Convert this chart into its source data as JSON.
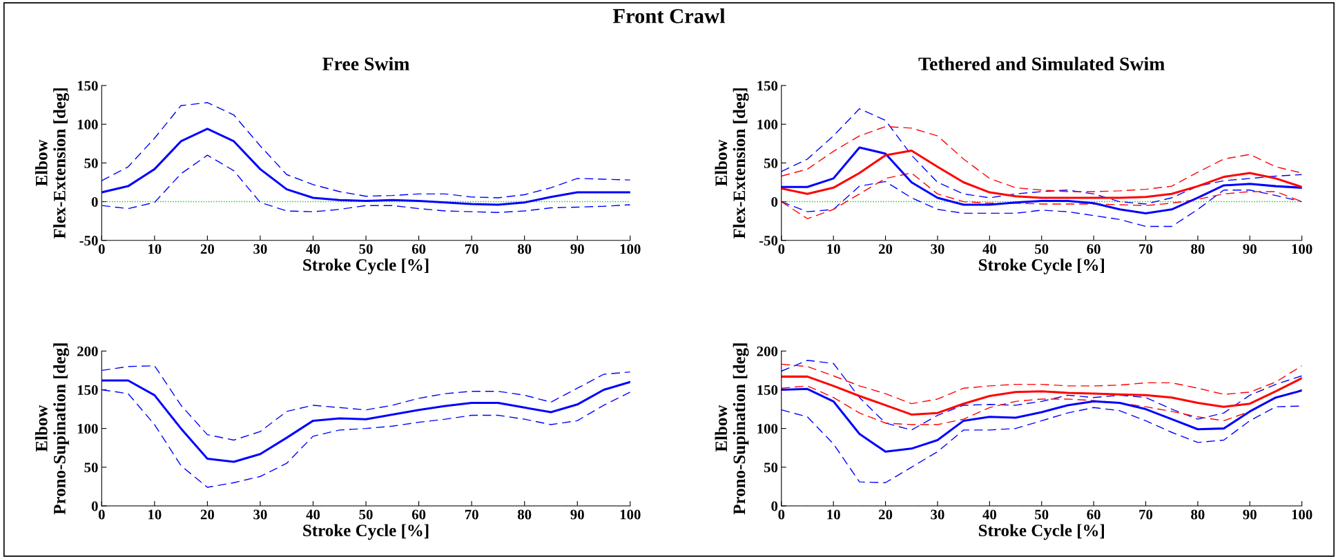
{
  "chart_data": [
    {
      "type": "line",
      "title": "Free Swim",
      "annotations": [
        "Front Crawl"
      ],
      "xlabel": "Stroke Cycle [%]",
      "ylabel": "Elbow\nFlex-Extension [deg]",
      "x": [
        0,
        5,
        10,
        15,
        20,
        25,
        30,
        35,
        40,
        45,
        50,
        55,
        60,
        65,
        70,
        75,
        80,
        85,
        90,
        95,
        100
      ],
      "xlim": [
        0,
        100
      ],
      "xticks": [
        0,
        10,
        20,
        30,
        40,
        50,
        60,
        70,
        80,
        90,
        100
      ],
      "ylim": [
        -50,
        150
      ],
      "yticks": [
        -50,
        0,
        50,
        100,
        150
      ],
      "grid": false,
      "ref_lines": [
        {
          "axis": "y",
          "value": 0,
          "color": "#00cc00",
          "line_style": "dotted"
        }
      ],
      "series": [
        {
          "color": "#0000ff",
          "line_style": "solid",
          "values": [
            12,
            20,
            42,
            78,
            94,
            78,
            42,
            16,
            5,
            2,
            1,
            2,
            1,
            -1,
            -3,
            -4,
            -1,
            6,
            12,
            12,
            12
          ]
        },
        {
          "color": "#0000ff",
          "line_style": "dashed",
          "values": [
            27,
            45,
            82,
            124,
            128,
            112,
            72,
            35,
            22,
            13,
            7,
            8,
            10,
            10,
            6,
            5,
            9,
            18,
            30,
            29,
            28
          ]
        },
        {
          "color": "#0000ff",
          "line_style": "dashed",
          "values": [
            -5,
            -9,
            -1,
            36,
            60,
            40,
            -1,
            -12,
            -13,
            -10,
            -5,
            -5,
            -9,
            -12,
            -13,
            -14,
            -12,
            -8,
            -7,
            -6,
            -4
          ]
        }
      ]
    },
    {
      "type": "line",
      "title": "Tethered and Simulated Swim",
      "xlabel": "Stroke Cycle [%]",
      "ylabel": "Elbow\nFlex-Extension [deg]",
      "x": [
        0,
        5,
        10,
        15,
        20,
        25,
        30,
        35,
        40,
        45,
        50,
        55,
        60,
        65,
        70,
        75,
        80,
        85,
        90,
        95,
        100
      ],
      "xlim": [
        0,
        100
      ],
      "xticks": [
        0,
        10,
        20,
        30,
        40,
        50,
        60,
        70,
        80,
        90,
        100
      ],
      "ylim": [
        -50,
        150
      ],
      "yticks": [
        -50,
        0,
        50,
        100,
        150
      ],
      "grid": false,
      "ref_lines": [
        {
          "axis": "y",
          "value": 0,
          "color": "#00cc00",
          "line_style": "dotted"
        }
      ],
      "series": [
        {
          "color": "#0000ff",
          "line_style": "dashed",
          "values": [
            39,
            55,
            85,
            120,
            105,
            60,
            25,
            10,
            5,
            10,
            13,
            15,
            10,
            0,
            -3,
            5,
            20,
            27,
            30,
            33,
            35
          ]
        },
        {
          "color": "#0000ff",
          "line_style": "dashed",
          "values": [
            0,
            -13,
            -10,
            20,
            26,
            5,
            -10,
            -15,
            -15,
            -15,
            -11,
            -13,
            -18,
            -23,
            -32,
            -32,
            -10,
            15,
            15,
            8,
            0
          ]
        },
        {
          "color": "#ff0000",
          "line_style": "dashed",
          "values": [
            33,
            42,
            65,
            85,
            97,
            95,
            85,
            55,
            30,
            18,
            15,
            13,
            13,
            14,
            16,
            20,
            38,
            55,
            61,
            45,
            37
          ]
        },
        {
          "color": "#ff0000",
          "line_style": "dashed",
          "values": [
            0,
            -22,
            -10,
            10,
            30,
            37,
            10,
            0,
            -2,
            -2,
            -3,
            -3,
            -3,
            -4,
            -5,
            -2,
            3,
            10,
            13,
            13,
            0
          ]
        },
        {
          "color": "#0000ff",
          "line_style": "solid",
          "values": [
            19,
            19,
            30,
            70,
            62,
            25,
            5,
            -4,
            -4,
            -1,
            1,
            1,
            -2,
            -10,
            -15,
            -10,
            5,
            21,
            23,
            20,
            18
          ]
        },
        {
          "color": "#ff0000",
          "line_style": "solid",
          "values": [
            17,
            10,
            18,
            37,
            60,
            66,
            45,
            25,
            12,
            7,
            5,
            5,
            5,
            5,
            6,
            10,
            20,
            32,
            37,
            30,
            19
          ]
        }
      ]
    },
    {
      "type": "line",
      "xlabel": "Stroke Cycle [%]",
      "ylabel": "Elbow\nProno-Supination [deg]",
      "x": [
        0,
        5,
        10,
        15,
        20,
        25,
        30,
        35,
        40,
        45,
        50,
        55,
        60,
        65,
        70,
        75,
        80,
        85,
        90,
        95,
        100
      ],
      "xlim": [
        0,
        100
      ],
      "xticks": [
        0,
        10,
        20,
        30,
        40,
        50,
        60,
        70,
        80,
        90,
        100
      ],
      "ylim": [
        0,
        200
      ],
      "yticks": [
        0,
        50,
        100,
        150,
        200
      ],
      "grid": false,
      "ref_lines": [
        {
          "axis": "y",
          "value": 0,
          "color": "#00cc00",
          "line_style": "dotted"
        }
      ],
      "series": [
        {
          "color": "#0000ff",
          "line_style": "solid",
          "values": [
            162,
            162,
            143,
            100,
            61,
            57,
            67,
            88,
            110,
            113,
            112,
            118,
            124,
            129,
            133,
            133,
            127,
            121,
            131,
            150,
            160
          ]
        },
        {
          "color": "#0000ff",
          "line_style": "dashed",
          "values": [
            175,
            180,
            181,
            130,
            92,
            85,
            96,
            122,
            130,
            127,
            124,
            130,
            139,
            145,
            148,
            148,
            143,
            134,
            152,
            170,
            173
          ]
        },
        {
          "color": "#0000ff",
          "line_style": "dashed",
          "values": [
            150,
            145,
            105,
            52,
            24,
            30,
            38,
            55,
            90,
            98,
            100,
            103,
            108,
            112,
            117,
            117,
            112,
            105,
            110,
            130,
            147
          ]
        }
      ]
    },
    {
      "type": "line",
      "xlabel": "Stroke Cycle [%]",
      "ylabel": "Elbow\nProno-Supination [deg]",
      "x": [
        0,
        5,
        10,
        15,
        20,
        25,
        30,
        35,
        40,
        45,
        50,
        55,
        60,
        65,
        70,
        75,
        80,
        85,
        90,
        95,
        100
      ],
      "xlim": [
        0,
        100
      ],
      "xticks": [
        0,
        10,
        20,
        30,
        40,
        50,
        60,
        70,
        80,
        90,
        100
      ],
      "ylim": [
        0,
        200
      ],
      "yticks": [
        0,
        50,
        100,
        150,
        200
      ],
      "grid": false,
      "ref_lines": [
        {
          "axis": "y",
          "value": 0,
          "color": "#00cc00",
          "line_style": "dotted"
        }
      ],
      "series": [
        {
          "color": "#0000ff",
          "line_style": "dashed",
          "values": [
            174,
            188,
            184,
            140,
            107,
            98,
            117,
            130,
            131,
            130,
            135,
            143,
            140,
            143,
            140,
            125,
            112,
            120,
            143,
            157,
            168
          ]
        },
        {
          "color": "#0000ff",
          "line_style": "dashed",
          "values": [
            124,
            115,
            80,
            31,
            30,
            50,
            70,
            98,
            98,
            100,
            110,
            120,
            127,
            123,
            110,
            95,
            82,
            85,
            110,
            128,
            129
          ]
        },
        {
          "color": "#ff0000",
          "line_style": "dashed",
          "values": [
            183,
            180,
            168,
            155,
            145,
            132,
            138,
            152,
            155,
            157,
            157,
            155,
            155,
            156,
            159,
            159,
            152,
            144,
            147,
            160,
            181
          ]
        },
        {
          "color": "#ff0000",
          "line_style": "dashed",
          "values": [
            152,
            155,
            140,
            120,
            107,
            105,
            105,
            112,
            127,
            135,
            138,
            138,
            136,
            133,
            128,
            122,
            115,
            110,
            122,
            140,
            150
          ]
        },
        {
          "color": "#0000ff",
          "line_style": "solid",
          "values": [
            150,
            151,
            135,
            93,
            70,
            74,
            85,
            110,
            115,
            114,
            121,
            130,
            135,
            133,
            125,
            112,
            99,
            100,
            122,
            140,
            149
          ]
        },
        {
          "color": "#ff0000",
          "line_style": "solid",
          "values": [
            167,
            167,
            155,
            142,
            130,
            118,
            120,
            132,
            142,
            147,
            148,
            146,
            145,
            144,
            143,
            140,
            133,
            128,
            132,
            148,
            165
          ]
        }
      ]
    }
  ]
}
